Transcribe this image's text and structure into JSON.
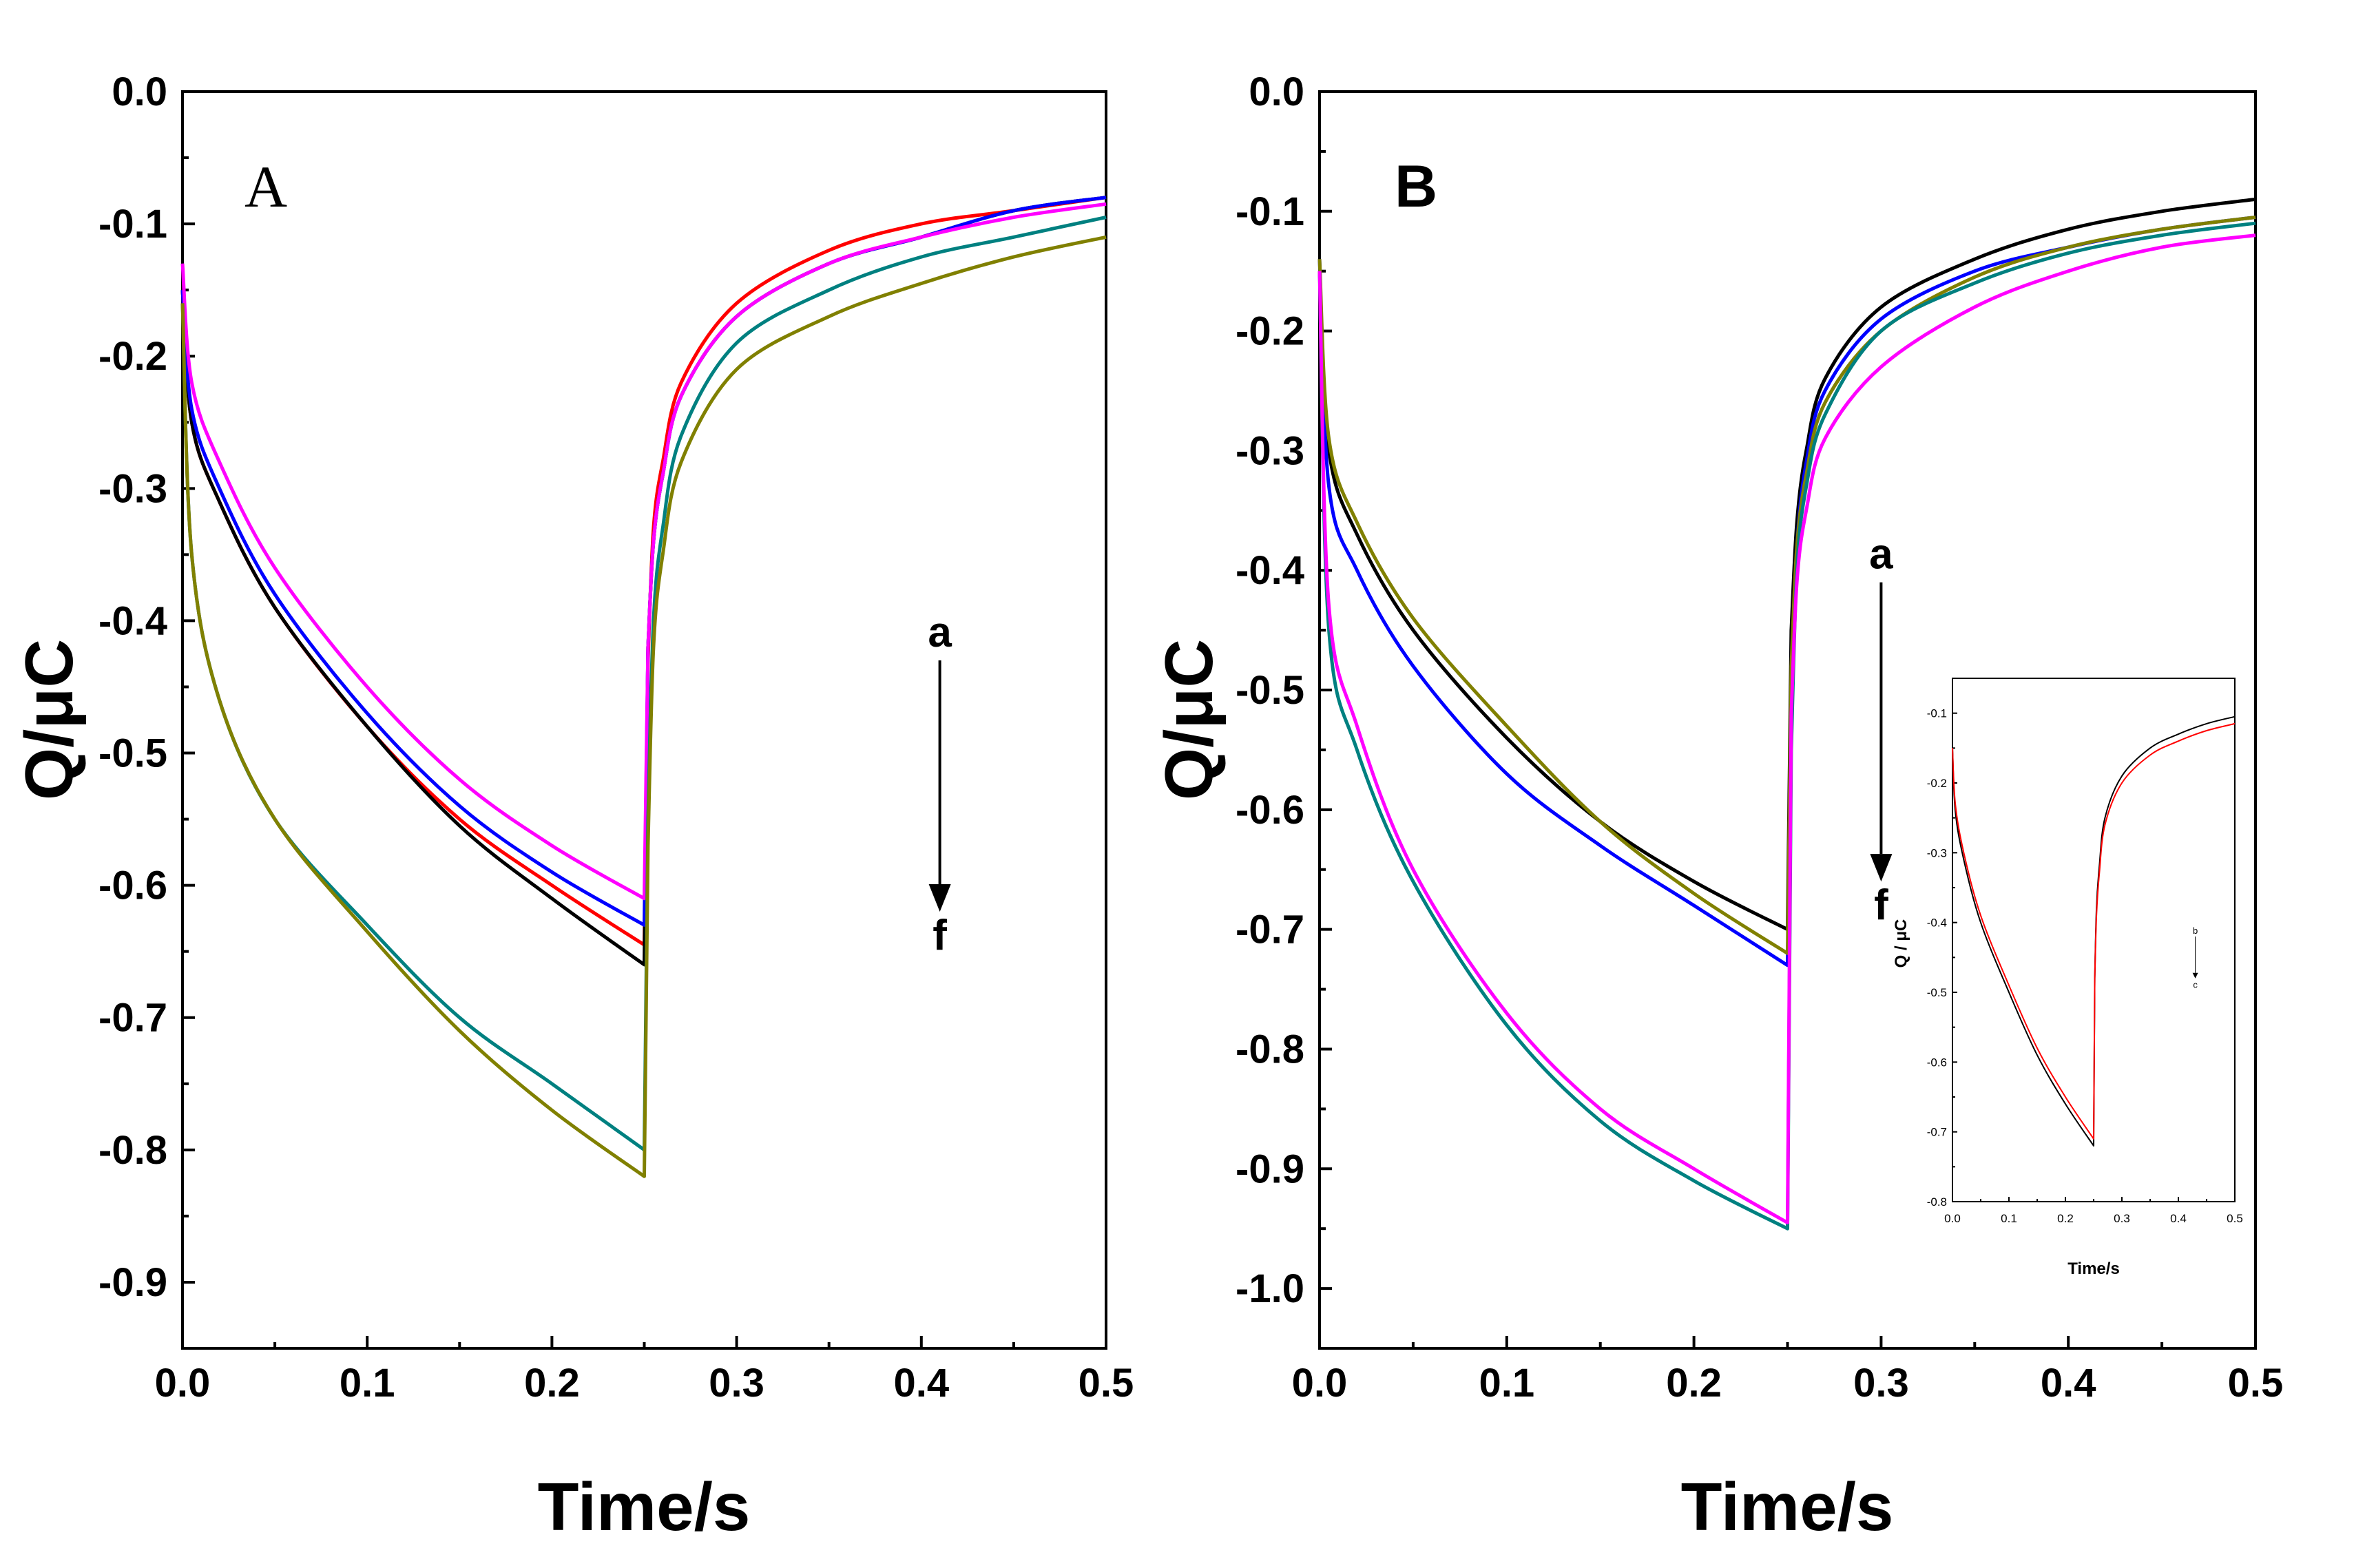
{
  "chart_data": [
    {
      "id": "A",
      "type": "line",
      "panel_label": "A",
      "xlabel": "Time/s",
      "ylabel": "Q/μC",
      "xlim": [
        0,
        0.5
      ],
      "ylim": [
        -0.95,
        0
      ],
      "xticks": [
        "0.0",
        "0.1",
        "0.2",
        "0.3",
        "0.4",
        "0.5"
      ],
      "yticks": [
        "0.0",
        "-0.1",
        "-0.2",
        "-0.3",
        "-0.4",
        "-0.5",
        "-0.6",
        "-0.7",
        "-0.8",
        "-0.9"
      ],
      "annotation": {
        "top": "a",
        "bottom": "f",
        "x": 0.41,
        "y_top": -0.43,
        "y_bottom": -0.62
      },
      "series": [
        {
          "color": "#ff0000",
          "x": [
            0.0,
            0.005,
            0.02,
            0.05,
            0.1,
            0.15,
            0.2,
            0.25,
            0.252,
            0.255,
            0.26,
            0.27,
            0.3,
            0.35,
            0.4,
            0.45,
            0.5
          ],
          "y": [
            -0.15,
            -0.25,
            -0.31,
            -0.39,
            -0.48,
            -0.55,
            -0.6,
            -0.645,
            -0.43,
            -0.33,
            -0.28,
            -0.22,
            -0.16,
            -0.12,
            -0.1,
            -0.09,
            -0.08
          ]
        },
        {
          "color": "#000000",
          "x": [
            0.0,
            0.005,
            0.02,
            0.05,
            0.1,
            0.15,
            0.2,
            0.25,
            0.252,
            0.255,
            0.26,
            0.27,
            0.3,
            0.35,
            0.4,
            0.45,
            0.5
          ],
          "y": [
            -0.15,
            -0.25,
            -0.31,
            -0.39,
            -0.48,
            -0.555,
            -0.61,
            -0.66,
            -0.42,
            -0.34,
            -0.29,
            -0.23,
            -0.17,
            -0.13,
            -0.11,
            -0.09,
            -0.08
          ]
        },
        {
          "color": "#0000ff",
          "x": [
            0.0,
            0.005,
            0.02,
            0.05,
            0.1,
            0.15,
            0.2,
            0.25,
            0.252,
            0.255,
            0.26,
            0.27,
            0.3,
            0.35,
            0.4,
            0.45,
            0.5
          ],
          "y": [
            -0.15,
            -0.24,
            -0.3,
            -0.38,
            -0.47,
            -0.54,
            -0.59,
            -0.63,
            -0.42,
            -0.34,
            -0.29,
            -0.23,
            -0.17,
            -0.13,
            -0.11,
            -0.09,
            -0.08
          ]
        },
        {
          "color": "#ff00ff",
          "x": [
            0.0,
            0.005,
            0.02,
            0.05,
            0.1,
            0.15,
            0.2,
            0.25,
            0.252,
            0.255,
            0.26,
            0.27,
            0.3,
            0.35,
            0.4,
            0.45,
            0.5
          ],
          "y": [
            -0.13,
            -0.22,
            -0.28,
            -0.36,
            -0.45,
            -0.52,
            -0.57,
            -0.61,
            -0.42,
            -0.34,
            -0.29,
            -0.23,
            -0.17,
            -0.13,
            -0.11,
            -0.095,
            -0.085
          ]
        },
        {
          "color": "#008080",
          "x": [
            0.0,
            0.005,
            0.02,
            0.05,
            0.1,
            0.15,
            0.2,
            0.25,
            0.252,
            0.255,
            0.26,
            0.27,
            0.3,
            0.35,
            0.4,
            0.45,
            0.5
          ],
          "y": [
            -0.16,
            -0.35,
            -0.46,
            -0.55,
            -0.63,
            -0.7,
            -0.75,
            -0.8,
            -0.55,
            -0.4,
            -0.33,
            -0.26,
            -0.19,
            -0.15,
            -0.125,
            -0.11,
            -0.095
          ]
        },
        {
          "color": "#808000",
          "x": [
            0.0,
            0.005,
            0.02,
            0.05,
            0.1,
            0.15,
            0.2,
            0.25,
            0.252,
            0.255,
            0.26,
            0.27,
            0.3,
            0.35,
            0.4,
            0.45,
            0.5
          ],
          "y": [
            -0.16,
            -0.35,
            -0.46,
            -0.55,
            -0.635,
            -0.71,
            -0.77,
            -0.82,
            -0.57,
            -0.42,
            -0.35,
            -0.28,
            -0.21,
            -0.17,
            -0.145,
            -0.125,
            -0.11
          ]
        }
      ]
    },
    {
      "id": "B",
      "type": "line",
      "panel_label": "B",
      "xlabel": "Time/s",
      "ylabel": "Q/μC",
      "xlim": [
        0,
        0.5
      ],
      "ylim": [
        -1.05,
        0
      ],
      "xticks": [
        "0.0",
        "0.1",
        "0.2",
        "0.3",
        "0.4",
        "0.5"
      ],
      "yticks": [
        "0.0",
        "-0.1",
        "-0.2",
        "-0.3",
        "-0.4",
        "-0.5",
        "-0.6",
        "-0.7",
        "-0.8",
        "-0.9",
        "-1.0"
      ],
      "annotation": {
        "top": "a",
        "bottom": "f",
        "x": 0.3,
        "y_top": -0.41,
        "y_bottom": -0.66
      },
      "series": [
        {
          "color": "#000000",
          "x": [
            0.0,
            0.005,
            0.02,
            0.05,
            0.1,
            0.15,
            0.2,
            0.25,
            0.252,
            0.255,
            0.26,
            0.27,
            0.3,
            0.35,
            0.4,
            0.45,
            0.5
          ],
          "y": [
            -0.15,
            -0.3,
            -0.37,
            -0.45,
            -0.54,
            -0.61,
            -0.66,
            -0.7,
            -0.45,
            -0.36,
            -0.3,
            -0.24,
            -0.18,
            -0.14,
            -0.115,
            -0.1,
            -0.09
          ]
        },
        {
          "color": "#0000ff",
          "x": [
            0.0,
            0.005,
            0.02,
            0.05,
            0.1,
            0.15,
            0.2,
            0.25,
            0.252,
            0.255,
            0.26,
            0.27,
            0.3,
            0.35,
            0.4,
            0.45,
            0.5
          ],
          "y": [
            -0.14,
            -0.33,
            -0.4,
            -0.48,
            -0.57,
            -0.63,
            -0.68,
            -0.73,
            -0.5,
            -0.38,
            -0.31,
            -0.25,
            -0.19,
            -0.15,
            -0.13,
            -0.115,
            -0.105
          ]
        },
        {
          "color": "#808000",
          "x": [
            0.0,
            0.005,
            0.02,
            0.05,
            0.1,
            0.15,
            0.2,
            0.25,
            0.252,
            0.255,
            0.26,
            0.27,
            0.3,
            0.35,
            0.4,
            0.45,
            0.5
          ],
          "y": [
            -0.14,
            -0.29,
            -0.36,
            -0.44,
            -0.53,
            -0.61,
            -0.67,
            -0.72,
            -0.48,
            -0.38,
            -0.32,
            -0.26,
            -0.2,
            -0.155,
            -0.13,
            -0.115,
            -0.105
          ]
        },
        {
          "color": "#008080",
          "x": [
            0.0,
            0.005,
            0.02,
            0.05,
            0.1,
            0.15,
            0.2,
            0.25,
            0.252,
            0.255,
            0.26,
            0.27,
            0.3,
            0.35,
            0.4,
            0.45,
            0.5
          ],
          "y": [
            -0.15,
            -0.45,
            -0.55,
            -0.66,
            -0.78,
            -0.86,
            -0.91,
            -0.95,
            -0.55,
            -0.4,
            -0.33,
            -0.27,
            -0.2,
            -0.16,
            -0.135,
            -0.12,
            -0.11
          ]
        },
        {
          "color": "#ff00ff",
          "x": [
            0.0,
            0.005,
            0.02,
            0.05,
            0.1,
            0.15,
            0.2,
            0.25,
            0.252,
            0.255,
            0.26,
            0.27,
            0.3,
            0.35,
            0.4,
            0.45,
            0.5
          ],
          "y": [
            -0.15,
            -0.43,
            -0.53,
            -0.65,
            -0.77,
            -0.85,
            -0.9,
            -0.945,
            -0.52,
            -0.41,
            -0.35,
            -0.29,
            -0.23,
            -0.18,
            -0.15,
            -0.13,
            -0.12
          ]
        }
      ]
    },
    {
      "id": "B-inset",
      "type": "line",
      "xlabel": "Time/s",
      "ylabel": "Q / μC",
      "xlim": [
        0,
        0.5
      ],
      "ylim": [
        -0.8,
        -0.05
      ],
      "xticks": [
        "0.0",
        "0.1",
        "0.2",
        "0.3",
        "0.4",
        "0.5"
      ],
      "yticks": [
        "-0.1",
        "-0.2",
        "-0.3",
        "-0.4",
        "-0.5",
        "-0.6",
        "-0.7",
        "-0.8"
      ],
      "annotation": {
        "top": "b",
        "bottom": "c",
        "x": 0.43,
        "y_top": -0.42,
        "y_bottom": -0.48
      },
      "series": [
        {
          "color": "#000000",
          "x": [
            0.0,
            0.005,
            0.02,
            0.05,
            0.1,
            0.15,
            0.2,
            0.25,
            0.252,
            0.255,
            0.26,
            0.27,
            0.3,
            0.35,
            0.4,
            0.45,
            0.5
          ],
          "y": [
            -0.15,
            -0.24,
            -0.31,
            -0.4,
            -0.5,
            -0.59,
            -0.66,
            -0.72,
            -0.48,
            -0.38,
            -0.32,
            -0.25,
            -0.19,
            -0.15,
            -0.13,
            -0.115,
            -0.105
          ]
        },
        {
          "color": "#ff0000",
          "x": [
            0.0,
            0.005,
            0.02,
            0.05,
            0.1,
            0.15,
            0.2,
            0.25,
            0.252,
            0.255,
            0.26,
            0.27,
            0.3,
            0.35,
            0.4,
            0.45,
            0.5
          ],
          "y": [
            -0.15,
            -0.23,
            -0.3,
            -0.39,
            -0.49,
            -0.58,
            -0.65,
            -0.71,
            -0.48,
            -0.39,
            -0.33,
            -0.26,
            -0.2,
            -0.16,
            -0.14,
            -0.125,
            -0.115
          ]
        }
      ]
    }
  ]
}
